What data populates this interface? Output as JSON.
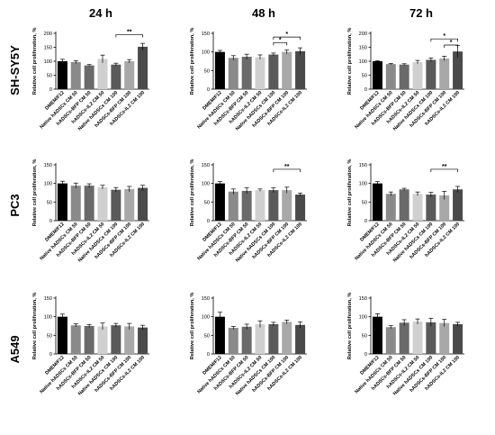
{
  "columns": [
    "24 h",
    "48 h",
    "72 h"
  ],
  "rows": [
    "SH-SY5Y",
    "PC3",
    "A549"
  ],
  "categories": [
    "DMEM/F12",
    "Native hADSCs CM 50",
    "hADSCs-BFP CM 50",
    "hADSCs-IL2 CM 50",
    "Native hADSCs CM 100",
    "hADSCs-BFP CM 100",
    "hADSCs-IL2 CM 100"
  ],
  "colors": [
    "#000000",
    "#8a8a8a",
    "#6a6a6a",
    "#d0d0d0",
    "#5a5a5a",
    "#a8a8a8",
    "#4a4a4a"
  ],
  "chart_data": [
    {
      "type": "bar",
      "row": "SH-SY5Y",
      "column": "24 h",
      "ylabel": "Relative cell proliferation, %",
      "ylim": [
        0,
        200
      ],
      "yticks": [
        0,
        50,
        100,
        150,
        200
      ],
      "values": [
        100,
        97,
        85,
        108,
        88,
        100,
        152
      ],
      "errors": [
        7,
        5,
        3,
        14,
        5,
        6,
        12
      ],
      "significance": [
        {
          "from": 4,
          "to": 6,
          "label": "**",
          "y": 195
        }
      ]
    },
    {
      "type": "bar",
      "row": "SH-SY5Y",
      "column": "48 h",
      "ylabel": "Relative cell proliferation, %",
      "ylim": [
        0,
        150
      ],
      "yticks": [
        0,
        50,
        100,
        150
      ],
      "values": [
        100,
        84,
        87,
        86,
        93,
        100,
        102
      ],
      "errors": [
        4,
        6,
        7,
        6,
        4,
        5,
        9
      ],
      "significance": [
        {
          "from": 4,
          "to": 6,
          "label": "*",
          "y": 140
        },
        {
          "from": 4,
          "to": 5,
          "label": "*",
          "y": 125
        }
      ]
    },
    {
      "type": "bar",
      "row": "SH-SY5Y",
      "column": "72 h",
      "ylabel": "Relative cell proliferation, %",
      "ylim": [
        0,
        200
      ],
      "yticks": [
        0,
        50,
        100,
        150,
        200
      ],
      "values": [
        100,
        90,
        88,
        97,
        105,
        110,
        135
      ],
      "errors": [
        2,
        2,
        3,
        6,
        7,
        8,
        22
      ],
      "significance": [
        {
          "from": 4,
          "to": 6,
          "label": "*",
          "y": 180
        },
        {
          "from": 5,
          "to": 6,
          "label": "*",
          "y": 158
        }
      ]
    },
    {
      "type": "bar",
      "row": "PC3",
      "column": "24 h",
      "ylabel": "Relative cell proliferation, %",
      "ylim": [
        0,
        150
      ],
      "yticks": [
        0,
        50,
        100,
        150
      ],
      "values": [
        100,
        94,
        94,
        90,
        83,
        85,
        88
      ],
      "errors": [
        6,
        7,
        5,
        5,
        6,
        7,
        7
      ],
      "significance": []
    },
    {
      "type": "bar",
      "row": "PC3",
      "column": "48 h",
      "ylabel": "Relative cell proliferation, %",
      "ylim": [
        0,
        150
      ],
      "yticks": [
        0,
        50,
        100,
        150
      ],
      "values": [
        100,
        78,
        80,
        82,
        82,
        82,
        70
      ],
      "errors": [
        5,
        7,
        8,
        3,
        6,
        8,
        4
      ],
      "significance": [
        {
          "from": 4,
          "to": 6,
          "label": "**",
          "y": 138
        }
      ]
    },
    {
      "type": "bar",
      "row": "PC3",
      "column": "72 h",
      "ylabel": "Relative cell proliferation, %",
      "ylim": [
        0,
        150
      ],
      "yticks": [
        0,
        50,
        100,
        150
      ],
      "values": [
        100,
        72,
        84,
        72,
        70,
        68,
        84
      ],
      "errors": [
        5,
        5,
        3,
        5,
        6,
        11,
        8
      ],
      "significance": [
        {
          "from": 4,
          "to": 6,
          "label": "**",
          "y": 138
        }
      ]
    },
    {
      "type": "bar",
      "row": "A549",
      "column": "24 h",
      "ylabel": "Relative cell proliferation, %",
      "ylim": [
        0,
        150
      ],
      "yticks": [
        0,
        50,
        100,
        150
      ],
      "values": [
        100,
        77,
        75,
        74,
        77,
        74,
        71
      ],
      "errors": [
        7,
        4,
        4,
        9,
        5,
        8,
        6
      ],
      "significance": []
    },
    {
      "type": "bar",
      "row": "A549",
      "column": "48 h",
      "ylabel": "Relative cell proliferation, %",
      "ylim": [
        0,
        150
      ],
      "yticks": [
        0,
        50,
        100,
        150
      ],
      "values": [
        100,
        70,
        73,
        80,
        80,
        86,
        78
      ],
      "errors": [
        12,
        4,
        7,
        9,
        5,
        5,
        8
      ],
      "significance": []
    },
    {
      "type": "bar",
      "row": "A549",
      "column": "72 h",
      "ylabel": "Relative cell proliferation, %",
      "ylim": [
        0,
        150
      ],
      "yticks": [
        0,
        50,
        100,
        150
      ],
      "values": [
        100,
        72,
        84,
        87,
        85,
        83,
        80
      ],
      "errors": [
        8,
        4,
        8,
        7,
        11,
        10,
        5
      ],
      "significance": []
    }
  ]
}
